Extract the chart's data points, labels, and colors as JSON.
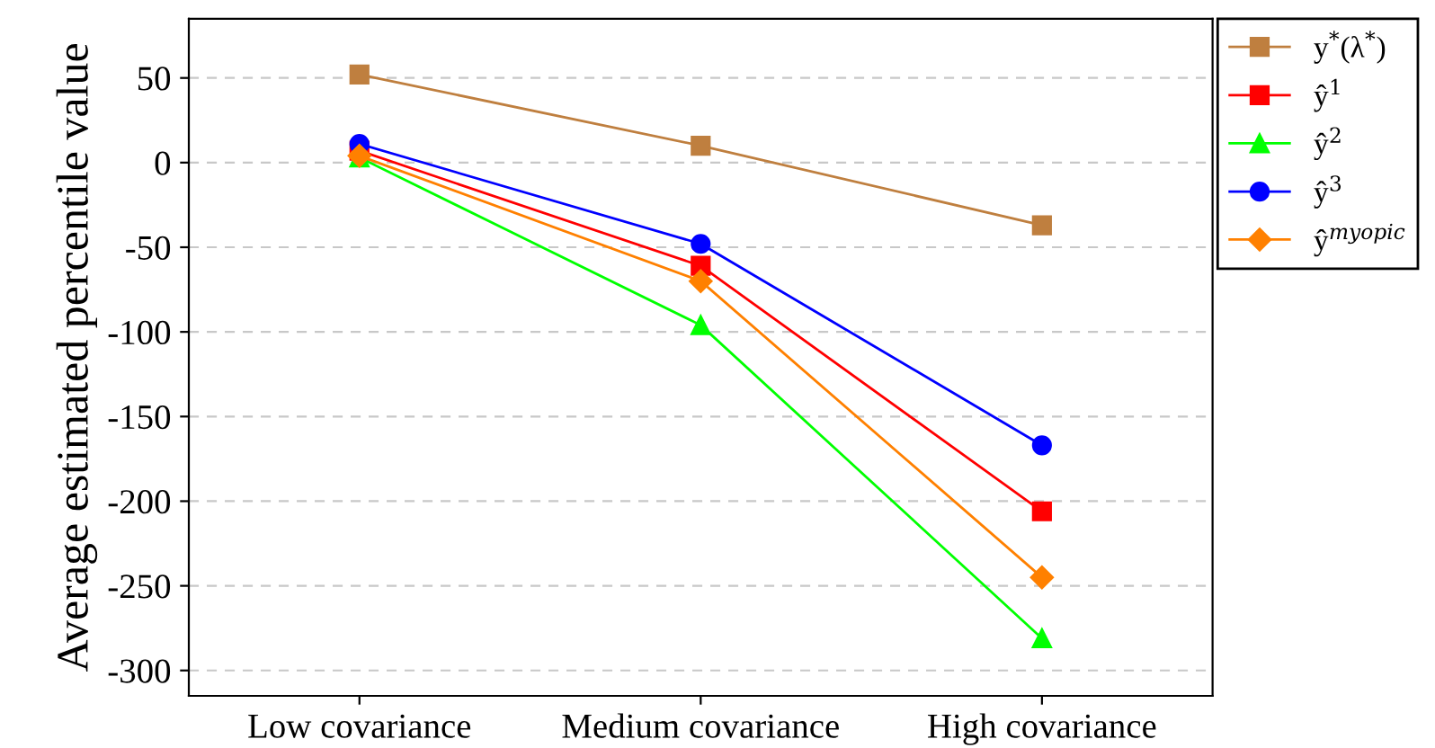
{
  "chart_data": {
    "type": "line",
    "ylabel": "Average estimated percentile value",
    "categories": [
      "Low covariance",
      "Medium covariance",
      "High covariance"
    ],
    "series": [
      {
        "name": "y$^{*}$(λ$^{*}$)",
        "color": "#bf7f3f",
        "marker": "square",
        "values": [
          52,
          10,
          -37
        ]
      },
      {
        "name": "ŷ$^{1}$",
        "color": "#ff0000",
        "marker": "square",
        "values": [
          7,
          -61,
          -206
        ]
      },
      {
        "name": "ŷ$^{2}$",
        "color": "#00ff00",
        "marker": "triangle",
        "values": [
          3,
          -96,
          -281
        ]
      },
      {
        "name": "ŷ$^{3}$",
        "color": "#0000ff",
        "marker": "circle",
        "values": [
          11,
          -48,
          -167
        ]
      },
      {
        "name": "ŷ$^{myopic}$",
        "color": "#ff8000",
        "marker": "diamond",
        "values": [
          4,
          -70,
          -245
        ]
      }
    ],
    "ylim": [
      -315,
      85
    ],
    "yticks": [
      -300,
      -250,
      -200,
      -150,
      -100,
      -50,
      0,
      50
    ],
    "grid": "y",
    "legend": "top right",
    "line_style": "solid"
  }
}
